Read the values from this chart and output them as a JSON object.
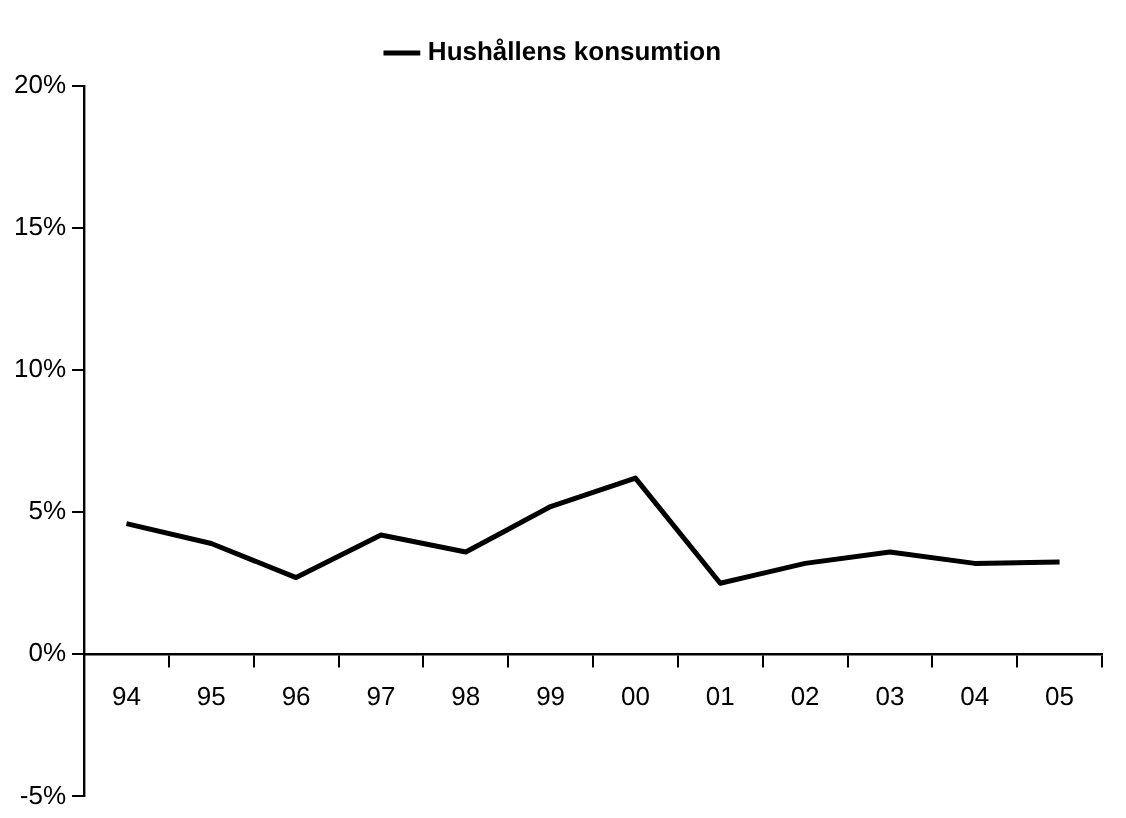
{
  "chart_data": {
    "type": "line",
    "categories": [
      "94",
      "95",
      "96",
      "97",
      "98",
      "99",
      "00",
      "01",
      "02",
      "03",
      "04",
      "05"
    ],
    "series": [
      {
        "name": "Hushållens konsumtion",
        "color": "#000000",
        "values": [
          4.6,
          3.9,
          2.7,
          4.2,
          3.6,
          5.2,
          6.2,
          2.5,
          3.2,
          3.6,
          3.2,
          3.25
        ]
      }
    ],
    "ylim": [
      -5,
      20
    ],
    "yticks": [
      {
        "value": -5,
        "label": "-5%"
      },
      {
        "value": 0,
        "label": "0%"
      },
      {
        "value": 5,
        "label": "5%"
      },
      {
        "value": 10,
        "label": "10%"
      },
      {
        "value": 15,
        "label": "15%"
      },
      {
        "value": 20,
        "label": "20%"
      }
    ],
    "grid": false,
    "legend": "top",
    "marker": "none",
    "line_style": "solid"
  }
}
